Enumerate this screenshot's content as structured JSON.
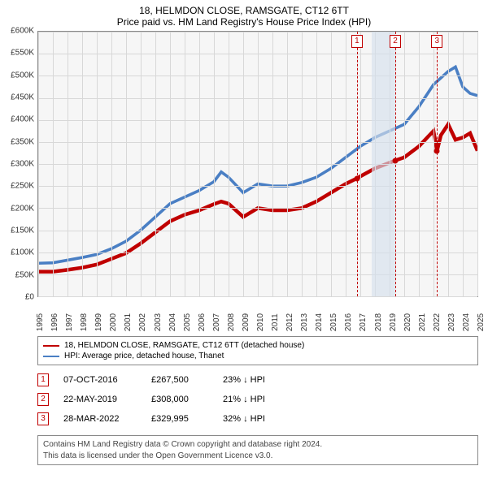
{
  "title": "18, HELMDON CLOSE, RAMSGATE, CT12 6TT",
  "subtitle": "Price paid vs. HM Land Registry's House Price Index (HPI)",
  "chart": {
    "type": "line",
    "background_color": "#f6f6f6",
    "grid_color": "#d8d8d8",
    "border_color": "#888888",
    "y": {
      "min": 0,
      "max": 600000,
      "step": 50000,
      "prefix": "£",
      "suffix": "K",
      "ticks": [
        "£0",
        "£50K",
        "£100K",
        "£150K",
        "£200K",
        "£250K",
        "£300K",
        "£350K",
        "£400K",
        "£450K",
        "£500K",
        "£550K",
        "£600K"
      ]
    },
    "x": {
      "min": 1995,
      "max": 2025,
      "ticks": [
        1995,
        1996,
        1997,
        1998,
        1999,
        2000,
        2001,
        2002,
        2003,
        2004,
        2005,
        2006,
        2007,
        2008,
        2009,
        2010,
        2011,
        2012,
        2013,
        2014,
        2015,
        2016,
        2017,
        2018,
        2019,
        2020,
        2021,
        2022,
        2023,
        2024,
        2025
      ]
    },
    "shaded": {
      "start": 2017.8,
      "end": 2019.4,
      "color": "#d5e0ed"
    },
    "series": [
      {
        "name": "property",
        "color": "#c00000",
        "width": 1.5,
        "label": "18, HELMDON CLOSE, RAMSGATE, CT12 6TT (detached house)",
        "points": [
          [
            1995,
            56000
          ],
          [
            1996,
            56000
          ],
          [
            1997,
            60000
          ],
          [
            1998,
            65000
          ],
          [
            1999,
            72000
          ],
          [
            2000,
            85000
          ],
          [
            2001,
            98000
          ],
          [
            2002,
            120000
          ],
          [
            2003,
            145000
          ],
          [
            2004,
            170000
          ],
          [
            2005,
            185000
          ],
          [
            2006,
            195000
          ],
          [
            2007,
            209000
          ],
          [
            2007.5,
            215000
          ],
          [
            2008,
            210000
          ],
          [
            2009,
            180000
          ],
          [
            2010,
            200000
          ],
          [
            2011,
            195000
          ],
          [
            2012,
            195000
          ],
          [
            2013,
            200000
          ],
          [
            2014,
            215000
          ],
          [
            2015,
            235000
          ],
          [
            2016,
            255000
          ],
          [
            2016.77,
            267500
          ],
          [
            2017,
            272000
          ],
          [
            2018,
            290000
          ],
          [
            2019.39,
            308000
          ],
          [
            2020,
            315000
          ],
          [
            2021,
            340000
          ],
          [
            2022,
            375000
          ],
          [
            2022.24,
            329995
          ],
          [
            2022.5,
            365000
          ],
          [
            2023,
            390000
          ],
          [
            2023.5,
            355000
          ],
          [
            2024,
            360000
          ],
          [
            2024.5,
            370000
          ],
          [
            2025,
            330000
          ]
        ]
      },
      {
        "name": "hpi",
        "color": "#4a7fc4",
        "width": 1.2,
        "label": "HPI: Average price, detached house, Thanet",
        "points": [
          [
            1995,
            75000
          ],
          [
            1996,
            76000
          ],
          [
            1997,
            82000
          ],
          [
            1998,
            88000
          ],
          [
            1999,
            95000
          ],
          [
            2000,
            108000
          ],
          [
            2001,
            125000
          ],
          [
            2002,
            150000
          ],
          [
            2003,
            180000
          ],
          [
            2004,
            210000
          ],
          [
            2005,
            225000
          ],
          [
            2006,
            240000
          ],
          [
            2007,
            260000
          ],
          [
            2007.5,
            282000
          ],
          [
            2008,
            270000
          ],
          [
            2009,
            235000
          ],
          [
            2010,
            255000
          ],
          [
            2011,
            250000
          ],
          [
            2012,
            250000
          ],
          [
            2013,
            258000
          ],
          [
            2014,
            270000
          ],
          [
            2015,
            290000
          ],
          [
            2016,
            315000
          ],
          [
            2017,
            340000
          ],
          [
            2018,
            360000
          ],
          [
            2019,
            375000
          ],
          [
            2020,
            390000
          ],
          [
            2021,
            430000
          ],
          [
            2022,
            480000
          ],
          [
            2023,
            510000
          ],
          [
            2023.5,
            520000
          ],
          [
            2024,
            475000
          ],
          [
            2024.5,
            460000
          ],
          [
            2025,
            455000
          ]
        ]
      }
    ],
    "markers": [
      {
        "n": "1",
        "date": "07-OCT-2016",
        "x": 2016.77,
        "price": 267500,
        "price_txt": "£267,500",
        "delta": "23% ↓ HPI"
      },
      {
        "n": "2",
        "date": "22-MAY-2019",
        "x": 2019.39,
        "price": 308000,
        "price_txt": "£308,000",
        "delta": "21% ↓ HPI"
      },
      {
        "n": "3",
        "date": "28-MAR-2022",
        "x": 2022.24,
        "price": 329995,
        "price_txt": "£329,995",
        "delta": "32% ↓ HPI"
      }
    ]
  },
  "footer": {
    "line1": "Contains HM Land Registry data © Crown copyright and database right 2024.",
    "line2": "This data is licensed under the Open Government Licence v3.0."
  }
}
